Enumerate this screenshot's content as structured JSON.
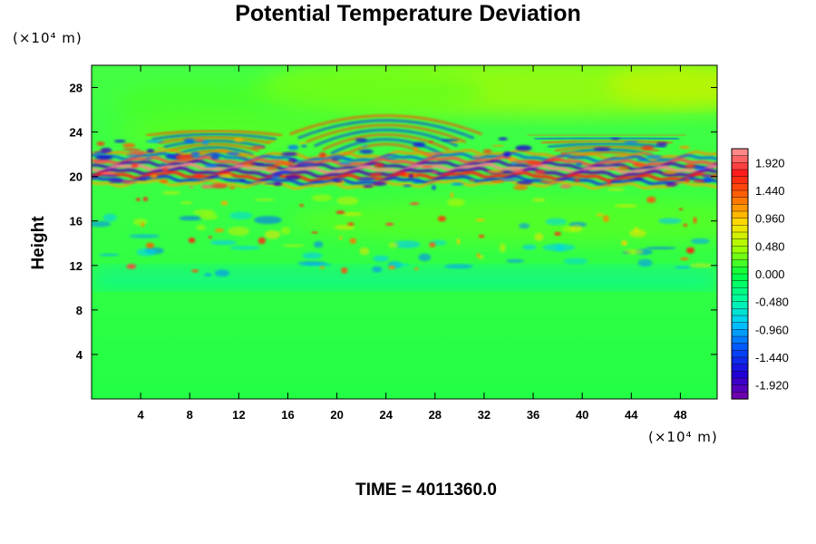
{
  "chart_data": {
    "type": "heatmap",
    "title": "Potential Temperature Deviation",
    "ylabel": "Height",
    "x_unit_label": "(×10⁴ m)",
    "y_unit_label": "(×10⁴ m)",
    "footer": "TIME = 4011360.0",
    "xlim": [
      0,
      51
    ],
    "ylim": [
      0,
      30
    ],
    "x_ticks": [
      "4",
      "8",
      "12",
      "16",
      "20",
      "24",
      "28",
      "32",
      "36",
      "40",
      "44",
      "48"
    ],
    "x_tick_values": [
      4,
      8,
      12,
      16,
      20,
      24,
      28,
      32,
      36,
      40,
      44,
      48
    ],
    "y_ticks": [
      "4",
      "8",
      "12",
      "16",
      "20",
      "24",
      "28"
    ],
    "y_tick_values": [
      4,
      8,
      12,
      16,
      20,
      24,
      28
    ],
    "colorbar": {
      "min": -2.16,
      "max": 2.16,
      "labels": [
        "1.920",
        "1.440",
        "0.960",
        "0.480",
        "0.000",
        "-0.480",
        "-0.960",
        "-1.440",
        "-1.920"
      ],
      "label_values": [
        1.92,
        1.44,
        0.96,
        0.48,
        0.0,
        -0.48,
        -0.96,
        -1.44,
        -1.92
      ],
      "colormap": [
        "#7a00a8",
        "#2000d8",
        "#0050ff",
        "#00c8ff",
        "#00ffa0",
        "#00ff40",
        "#a0ff00",
        "#ffe000",
        "#ff7000",
        "#ff1818",
        "#ff9a9a"
      ]
    }
  }
}
